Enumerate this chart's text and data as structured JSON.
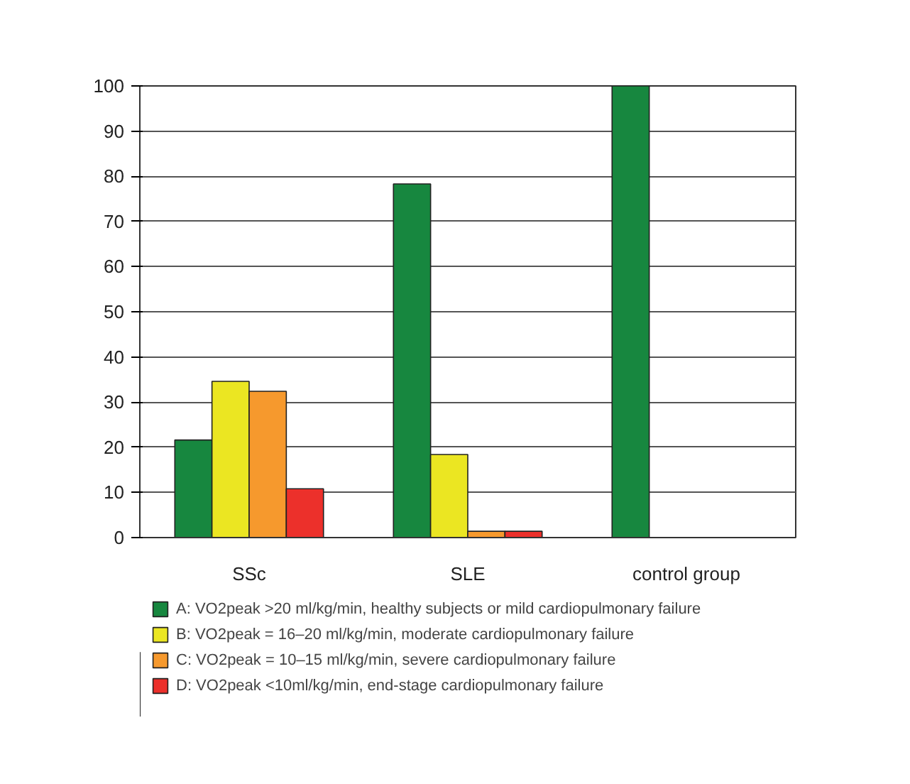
{
  "chart_data": {
    "type": "bar",
    "categories": [
      "SSc",
      "SLE",
      "control group"
    ],
    "series": [
      {
        "name": "A: VO2peak >20 ml/kg/min, healthy subjects or mild cardiopulmonary failure",
        "color": "#17873f",
        "values": [
          21.6,
          78.3,
          100
        ]
      },
      {
        "name": "B: VO2peak = 16–20 ml/kg/min, moderate cardiopulmonary failure",
        "color": "#ebe622",
        "values": [
          34.6,
          18.4,
          0
        ]
      },
      {
        "name": "C: VO2peak = 10–15 ml/kg/min, severe cardiopulmonary failure",
        "color": "#f6992d",
        "values": [
          32.4,
          1.4,
          0
        ]
      },
      {
        "name": "D: VO2peak <10ml/kg/min, end-stage cardiopulmonary failure",
        "color": "#ec302b",
        "values": [
          10.8,
          1.4,
          0
        ]
      }
    ],
    "ylim": [
      0,
      100
    ],
    "yticks": [
      0,
      10,
      20,
      30,
      40,
      50,
      60,
      70,
      80,
      90,
      100
    ],
    "grid": "y",
    "legend": "bottom"
  }
}
